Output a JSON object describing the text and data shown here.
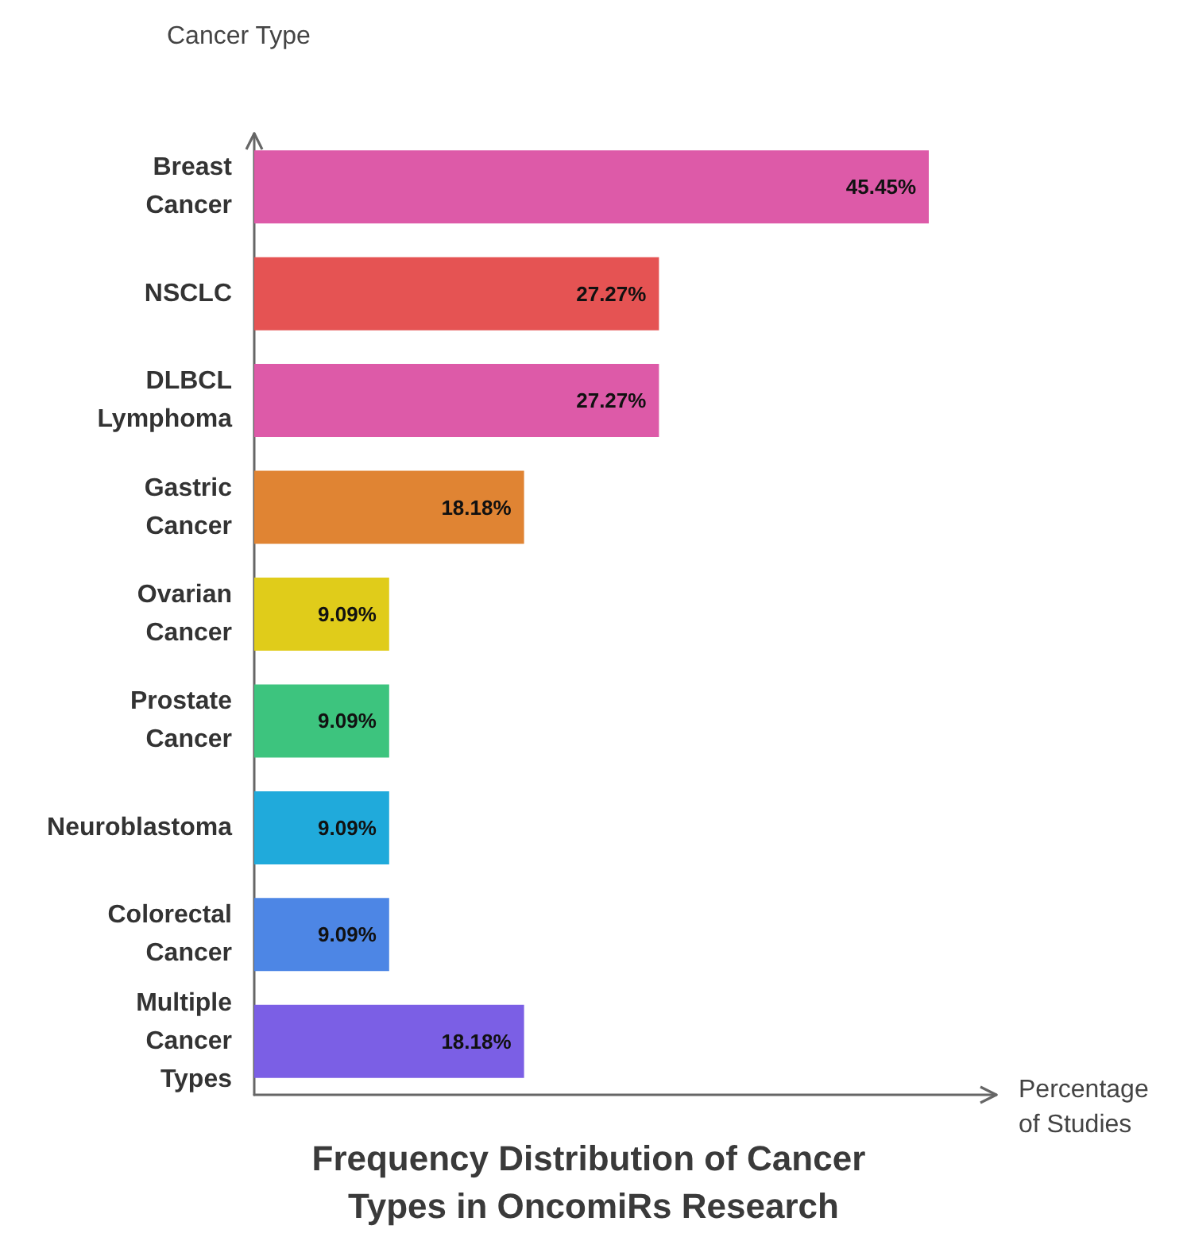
{
  "chart_data": {
    "type": "bar",
    "orientation": "horizontal",
    "title": "Frequency Distribution of Cancer Types in OncomiRs Research",
    "xlabel": "Percentage of Studies",
    "ylabel": "Cancer Type",
    "categories": [
      "Breast Cancer",
      "NSCLC",
      "DLBCL Lymphoma",
      "Gastric Cancer",
      "Ovarian Cancer",
      "Prostate Cancer",
      "Neuroblastoma",
      "Colorectal Cancer",
      "Multiple Cancer Types"
    ],
    "values": [
      45.45,
      27.27,
      27.27,
      18.18,
      9.09,
      9.09,
      9.09,
      9.09,
      18.18
    ],
    "value_labels": [
      "45.45%",
      "27.27%",
      "27.27%",
      "18.18%",
      "9.09%",
      "9.09%",
      "9.09%",
      "9.09%",
      "18.18%"
    ],
    "colors": [
      "#dd5aa8",
      "#e55353",
      "#dd5aa8",
      "#e08433",
      "#e0cc1a",
      "#3dc47e",
      "#20aadb",
      "#4d86e5",
      "#7b5fe5"
    ],
    "tick_labels": "y",
    "grid": false
  }
}
